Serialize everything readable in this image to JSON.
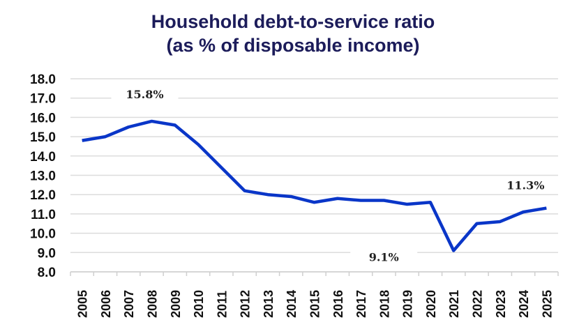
{
  "chart_data": {
    "type": "line",
    "title": [
      "Household debt-to-service ratio",
      "(as % of disposable income)"
    ],
    "categories": [
      "2005",
      "2006",
      "2007",
      "2008",
      "2009",
      "2010",
      "2011",
      "2012",
      "2013",
      "2014",
      "2015",
      "2016",
      "2017",
      "2018",
      "2019",
      "2020",
      "2021",
      "2022",
      "2023",
      "2024",
      "2025"
    ],
    "values": [
      14.8,
      15.0,
      15.5,
      15.8,
      15.6,
      14.6,
      13.4,
      12.2,
      12.0,
      11.9,
      11.6,
      11.8,
      11.7,
      11.7,
      11.5,
      11.6,
      9.1,
      10.5,
      10.6,
      11.1,
      11.3
    ],
    "ylim": [
      8.0,
      18.0
    ],
    "yticks": [
      "8.0",
      "9.0",
      "10.0",
      "11.0",
      "12.0",
      "13.0",
      "14.0",
      "15.0",
      "16.0",
      "17.0",
      "18.0"
    ],
    "grid": true,
    "line_color": "#0a36c8",
    "annotations": [
      {
        "text": "15.8%",
        "category": "2008"
      },
      {
        "text": "9.1%",
        "category": "2021"
      },
      {
        "text": "11.3%",
        "category": "2025"
      }
    ]
  }
}
